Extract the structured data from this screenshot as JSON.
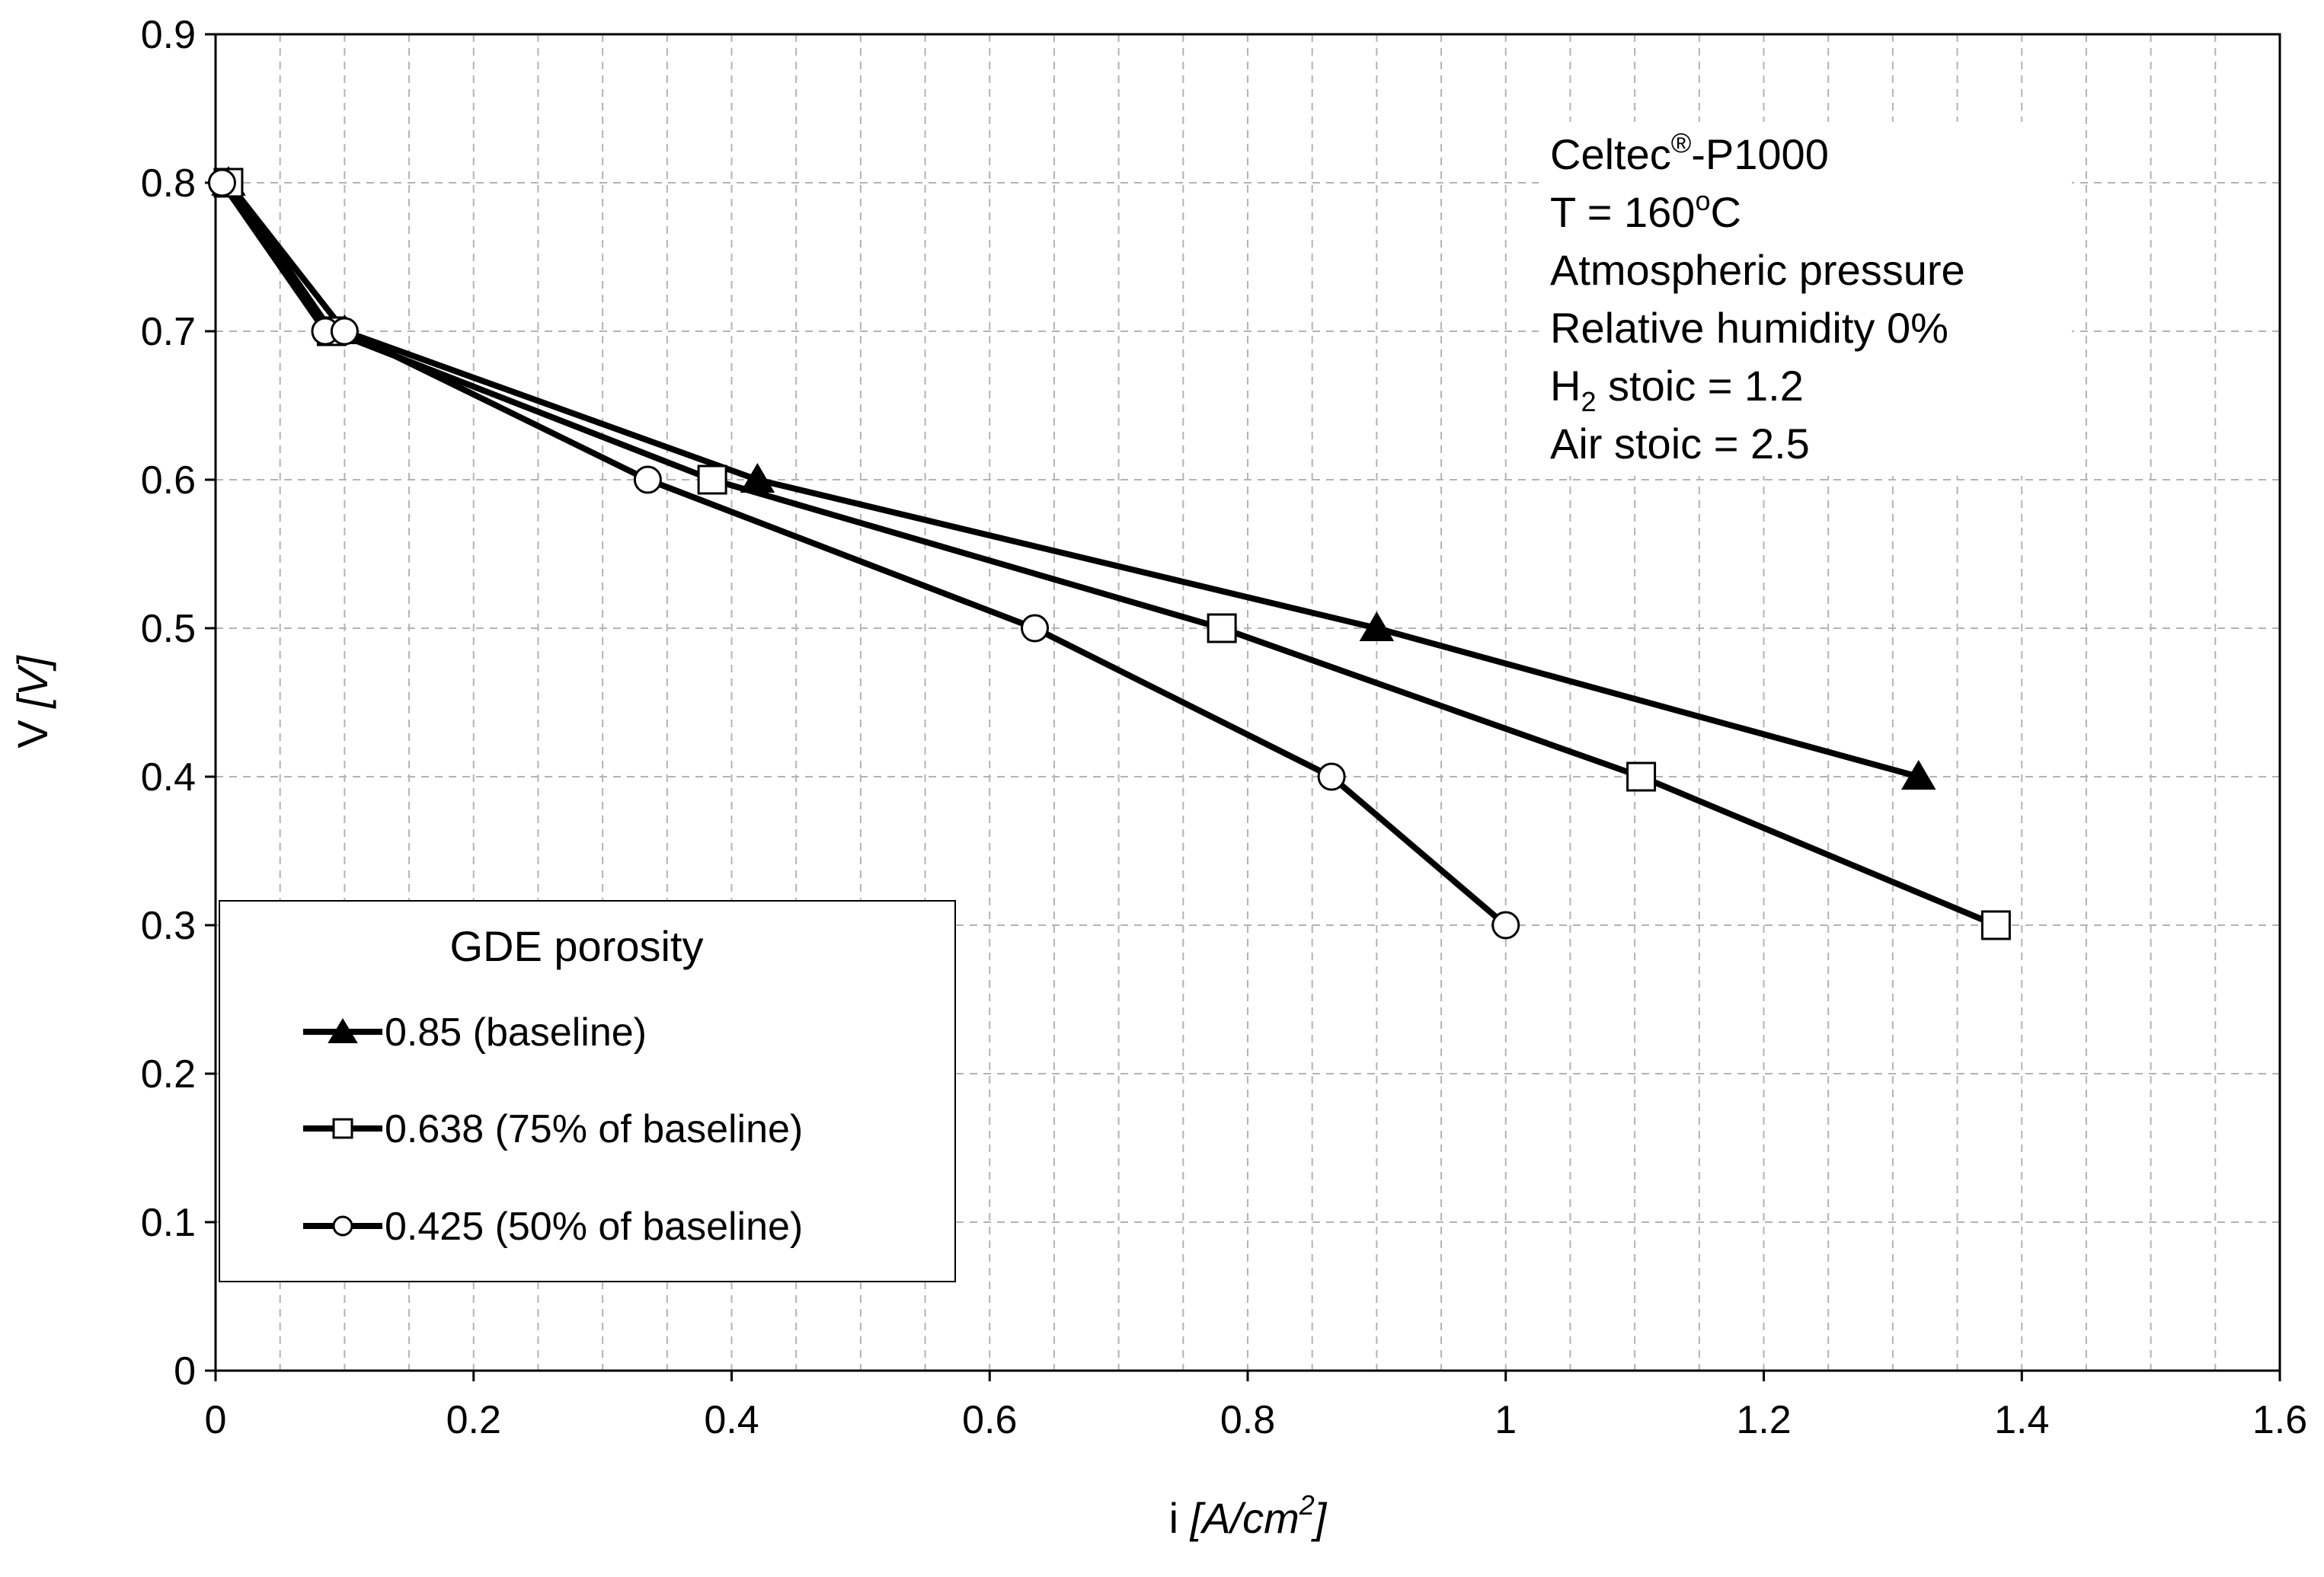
{
  "chart_data": {
    "type": "line",
    "xlabel": {
      "prefix": "i ",
      "unit_main": "[A/cm",
      "unit_sup": "2",
      "unit_end": "]"
    },
    "ylabel": {
      "prefix": "V ",
      "unit": "[V]"
    },
    "xlim": [
      0,
      1.6
    ],
    "ylim": [
      0,
      0.9
    ],
    "x_ticks": [
      0,
      0.2,
      0.4,
      0.6,
      0.8,
      1,
      1.2,
      1.4,
      1.6
    ],
    "x_tick_labels": [
      "0",
      "0.2",
      "0.4",
      "0.6",
      "0.8",
      "1",
      "1.2",
      "1.4",
      "1.6"
    ],
    "y_ticks": [
      0,
      0.1,
      0.2,
      0.3,
      0.4,
      0.5,
      0.6,
      0.7,
      0.8,
      0.9
    ],
    "y_tick_labels": [
      "0",
      "0.1",
      "0.2",
      "0.3",
      "0.4",
      "0.5",
      "0.6",
      "0.7",
      "0.8",
      "0.9"
    ],
    "x_minor_step": 0.05,
    "grid": true,
    "legend": {
      "title": "GDE porosity",
      "placement": "bottom-left"
    },
    "series": [
      {
        "name": "0.85 (baseline)",
        "marker": "triangle-filled",
        "x": [
          0.01,
          0.1,
          0.42,
          0.9,
          1.32
        ],
        "y": [
          0.8,
          0.7,
          0.6,
          0.5,
          0.4
        ]
      },
      {
        "name": "0.638 (75% of baseline)",
        "marker": "square-open",
        "x": [
          0.01,
          0.09,
          0.385,
          0.78,
          1.105,
          1.38
        ],
        "y": [
          0.8,
          0.7,
          0.6,
          0.5,
          0.4,
          0.3
        ]
      },
      {
        "name": "0.425 (50% of baseline)",
        "marker": "circle-open",
        "x": [
          0.005,
          0.085,
          0.1,
          0.335,
          0.635,
          0.865,
          1.0
        ],
        "y": [
          0.8,
          0.7,
          0.7,
          0.6,
          0.5,
          0.4,
          0.3
        ]
      }
    ],
    "annotation": {
      "line1_main": "Celtec",
      "line1_sup": "®",
      "line1_end": "-P1000",
      "line2_main": "T = 160",
      "line2_sup": "o",
      "line2_end": "C",
      "line3": "Atmospheric pressure",
      "line4": "Relative humidity 0%",
      "line5_main": "H",
      "line5_sub": "2",
      "line5_end": " stoic = 1.2",
      "line6": "Air stoic = 2.5"
    },
    "colors": {
      "line": "#000000",
      "grid": "#b3b3b3",
      "background": "#ffffff"
    }
  }
}
